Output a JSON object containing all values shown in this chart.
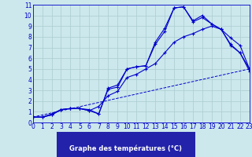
{
  "background_color": "#cce8ec",
  "grid_color": "#aaccd0",
  "line_color": "#0000cc",
  "xlabel": "Graphe des températures (°C)",
  "xlabel_fontsize": 6.0,
  "tick_fontsize": 5.5,
  "xlim": [
    0,
    23
  ],
  "ylim": [
    0,
    11
  ],
  "xticks": [
    0,
    1,
    2,
    3,
    4,
    5,
    6,
    7,
    8,
    9,
    10,
    11,
    12,
    13,
    14,
    15,
    16,
    17,
    18,
    19,
    20,
    21,
    22,
    23
  ],
  "yticks": [
    0,
    1,
    2,
    3,
    4,
    5,
    6,
    7,
    8,
    9,
    10,
    11
  ],
  "series1_x": [
    0,
    1,
    2,
    3,
    4,
    5,
    6,
    7,
    8,
    9,
    10,
    11,
    12,
    13,
    14,
    15,
    16,
    17,
    18,
    19,
    20,
    21,
    22,
    23
  ],
  "series1_y": [
    0.5,
    0.5,
    0.7,
    1.2,
    1.3,
    1.3,
    1.2,
    0.8,
    3.1,
    3.3,
    5.0,
    5.2,
    5.3,
    7.5,
    8.8,
    10.7,
    10.8,
    9.4,
    9.8,
    9.2,
    8.7,
    7.3,
    6.5,
    5.0
  ],
  "series2_x": [
    0,
    1,
    2,
    3,
    4,
    5,
    6,
    7,
    8,
    9,
    10,
    11,
    12,
    13,
    14,
    15,
    16,
    17,
    18,
    19,
    20,
    21,
    22,
    23
  ],
  "series2_y": [
    0.5,
    0.5,
    0.7,
    1.2,
    1.3,
    1.3,
    1.1,
    0.8,
    3.2,
    3.5,
    5.0,
    5.2,
    5.3,
    7.3,
    8.5,
    10.7,
    10.8,
    9.5,
    10.0,
    9.2,
    8.7,
    7.2,
    6.5,
    4.8
  ],
  "series3_x": [
    0,
    23
  ],
  "series3_y": [
    0.5,
    5.0
  ],
  "series4_x": [
    0,
    1,
    2,
    3,
    4,
    5,
    6,
    7,
    8,
    9,
    10,
    11,
    12,
    13,
    14,
    15,
    16,
    17,
    18,
    19,
    20,
    21,
    22,
    23
  ],
  "series4_y": [
    0.5,
    0.5,
    0.8,
    1.2,
    1.3,
    1.3,
    1.1,
    1.5,
    2.5,
    2.9,
    4.2,
    4.5,
    5.0,
    5.5,
    6.5,
    7.5,
    8.0,
    8.3,
    8.7,
    9.0,
    8.7,
    7.9,
    7.2,
    5.0
  ],
  "xlabel_bg": "#2222aa",
  "xlabel_fg": "#ffffff"
}
